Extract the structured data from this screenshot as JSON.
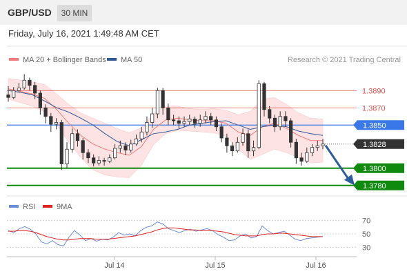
{
  "header": {
    "pair": "GBP/USD",
    "timeframe": "30 MIN",
    "datetime": "Friday, July 16, 2021 1:49:48 AM CET"
  },
  "legend": {
    "ma20": "MA 20 + Bollinger Bands",
    "ma50": "MA 50",
    "research": "Research © 2021 Trading Central",
    "rsi": "RSI",
    "ma9": "9MA"
  },
  "colors": {
    "ma20": "#f07c7c",
    "ma50": "#335a96",
    "bands_fill": "#fde3e3",
    "resistance": "#e25050",
    "pivot": "#3b78e7",
    "support": "#0f8a0f",
    "last_price": "#333333",
    "arrow": "#2b5c9c",
    "rsi_line": "#6b8bd6",
    "rsi_ma": "#dd2222"
  },
  "chart_data": [
    {
      "type": "candlestick",
      "title": "GBP/USD",
      "timeframe": "30 MIN",
      "x_ticks": [
        "Jul 14",
        "Jul 15",
        "Jul 16"
      ],
      "levels": [
        {
          "value": 1.389,
          "label": "1.3890",
          "kind": "resistance"
        },
        {
          "value": 1.387,
          "label": "1.3870",
          "kind": "resistance"
        },
        {
          "value": 1.385,
          "label": "1.3850",
          "kind": "pivot"
        },
        {
          "value": 1.3828,
          "label": "1.3828",
          "kind": "last"
        },
        {
          "value": 1.38,
          "label": "1.3800",
          "kind": "support"
        },
        {
          "value": 1.378,
          "label": "1.3780",
          "kind": "support"
        }
      ],
      "ylim": [
        1.3775,
        1.3935
      ],
      "series": [
        {
          "name": "MA 20 + Bollinger Bands",
          "values": [
            1.3892,
            1.3889,
            1.3886,
            1.3881,
            1.3868,
            1.3852,
            1.3838,
            1.3828,
            1.3822,
            1.3818,
            1.3815,
            1.3825,
            1.3845,
            1.3856,
            1.3858,
            1.3856,
            1.3855,
            1.3855,
            1.3852,
            1.3842,
            1.3838,
            1.3848,
            1.3852,
            1.3846,
            1.3838,
            1.3832,
            1.3832
          ]
        },
        {
          "name": "MA 50",
          "values": [
            1.389,
            1.3888,
            1.3885,
            1.3878,
            1.387,
            1.3865,
            1.3858,
            1.385,
            1.384,
            1.3831,
            1.3826,
            1.3833,
            1.384,
            1.3842,
            1.3845,
            1.385,
            1.3852,
            1.3854,
            1.3855,
            1.385,
            1.3845,
            1.3848,
            1.385,
            1.3848,
            1.3843,
            1.384,
            1.3838
          ]
        }
      ],
      "candles": [
        [
          1.3885,
          1.3882,
          1.3895,
          1.3877
        ],
        [
          1.3882,
          1.389,
          1.3894,
          1.388
        ],
        [
          1.389,
          1.3893,
          1.3899,
          1.3888
        ],
        [
          1.3893,
          1.3902,
          1.3909,
          1.3891
        ],
        [
          1.3902,
          1.3896,
          1.3905,
          1.389
        ],
        [
          1.3896,
          1.3887,
          1.39,
          1.388
        ],
        [
          1.3887,
          1.387,
          1.389,
          1.3862
        ],
        [
          1.387,
          1.386,
          1.3874,
          1.3852
        ],
        [
          1.386,
          1.3851,
          1.3864,
          1.3842
        ],
        [
          1.3851,
          1.3853,
          1.3858,
          1.3845
        ],
        [
          1.3853,
          1.3805,
          1.3856,
          1.3798
        ],
        [
          1.3805,
          1.3822,
          1.383,
          1.38
        ],
        [
          1.3822,
          1.384,
          1.3846,
          1.3818
        ],
        [
          1.384,
          1.3832,
          1.3845,
          1.3825
        ],
        [
          1.3832,
          1.3818,
          1.3835,
          1.381
        ],
        [
          1.3818,
          1.3812,
          1.3822,
          1.3806
        ],
        [
          1.3812,
          1.3806,
          1.3816,
          1.3802
        ],
        [
          1.3806,
          1.3809,
          1.3814,
          1.3803
        ],
        [
          1.3809,
          1.3808,
          1.3812,
          1.3803
        ],
        [
          1.3808,
          1.3812,
          1.3816,
          1.3806
        ],
        [
          1.3812,
          1.3823,
          1.3828,
          1.381
        ],
        [
          1.3823,
          1.3826,
          1.3832,
          1.3818
        ],
        [
          1.3826,
          1.3821,
          1.383,
          1.3815
        ],
        [
          1.3821,
          1.3828,
          1.3833,
          1.3818
        ],
        [
          1.3828,
          1.3834,
          1.3839,
          1.3826
        ],
        [
          1.3834,
          1.3842,
          1.3848,
          1.383
        ],
        [
          1.3842,
          1.3853,
          1.386,
          1.3838
        ],
        [
          1.3853,
          1.3863,
          1.387,
          1.3847
        ],
        [
          1.3863,
          1.389,
          1.3893,
          1.3858
        ],
        [
          1.389,
          1.387,
          1.3893,
          1.3862
        ],
        [
          1.387,
          1.3856,
          1.3875,
          1.385
        ],
        [
          1.3856,
          1.3855,
          1.3862,
          1.385
        ],
        [
          1.3855,
          1.3852,
          1.386,
          1.3846
        ],
        [
          1.3852,
          1.3854,
          1.386,
          1.3848
        ],
        [
          1.3854,
          1.3857,
          1.3862,
          1.385
        ],
        [
          1.3857,
          1.3852,
          1.386,
          1.3847
        ],
        [
          1.3852,
          1.3856,
          1.3862,
          1.3848
        ],
        [
          1.3856,
          1.386,
          1.3866,
          1.3852
        ],
        [
          1.386,
          1.3856,
          1.3864,
          1.385
        ],
        [
          1.3856,
          1.3848,
          1.386,
          1.3843
        ],
        [
          1.3848,
          1.3835,
          1.3852,
          1.383
        ],
        [
          1.3835,
          1.3826,
          1.384,
          1.3818
        ],
        [
          1.3826,
          1.382,
          1.383,
          1.3814
        ],
        [
          1.382,
          1.383,
          1.3836,
          1.3818
        ],
        [
          1.383,
          1.384,
          1.3846,
          1.3826
        ],
        [
          1.384,
          1.382,
          1.3845,
          1.3812
        ],
        [
          1.382,
          1.3824,
          1.3832,
          1.3814
        ],
        [
          1.3824,
          1.3898,
          1.3902,
          1.3822
        ],
        [
          1.3898,
          1.3868,
          1.39,
          1.386
        ],
        [
          1.3868,
          1.3858,
          1.3872,
          1.3852
        ],
        [
          1.3858,
          1.3848,
          1.3862,
          1.3842
        ],
        [
          1.3848,
          1.386,
          1.3866,
          1.3844
        ],
        [
          1.386,
          1.3855,
          1.3866,
          1.3848
        ],
        [
          1.3855,
          1.383,
          1.3858,
          1.3824
        ],
        [
          1.383,
          1.3812,
          1.3834,
          1.3805
        ],
        [
          1.3812,
          1.3808,
          1.3818,
          1.3803
        ],
        [
          1.3808,
          1.3818,
          1.3824,
          1.3806
        ],
        [
          1.3818,
          1.3824,
          1.3828,
          1.3814
        ],
        [
          1.3824,
          1.3826,
          1.3832,
          1.382
        ],
        [
          1.3826,
          1.3828,
          1.3834,
          1.3822
        ]
      ]
    },
    {
      "type": "line",
      "title": "RSI",
      "yticks": [
        70,
        50,
        30
      ],
      "ylim": [
        20,
        80
      ],
      "series": [
        {
          "name": "RSI",
          "values": [
            55,
            52,
            58,
            61,
            57,
            50,
            38,
            35,
            40,
            34,
            32,
            45,
            55,
            48,
            40,
            43,
            39,
            42,
            41,
            45,
            52,
            48,
            50,
            47,
            55,
            60,
            62,
            68,
            65,
            58,
            55,
            52,
            55,
            57,
            54,
            56,
            58,
            55,
            49,
            45,
            40,
            41,
            47,
            50,
            44,
            46,
            62,
            55,
            50,
            52,
            54,
            48,
            42,
            40,
            43,
            44,
            45,
            46
          ]
        },
        {
          "name": "9MA",
          "values": [
            54,
            54,
            55,
            55,
            54,
            52,
            49,
            46,
            44,
            42,
            41,
            41,
            42,
            43,
            43,
            43,
            42,
            42,
            42,
            43,
            44,
            45,
            46,
            47,
            49,
            51,
            53,
            56,
            58,
            59,
            59,
            58,
            57,
            56,
            56,
            55,
            55,
            55,
            54,
            53,
            51,
            49,
            48,
            47,
            47,
            47,
            49,
            50,
            50,
            51,
            51,
            50,
            49,
            48,
            47,
            46,
            46,
            46
          ]
        }
      ]
    }
  ]
}
